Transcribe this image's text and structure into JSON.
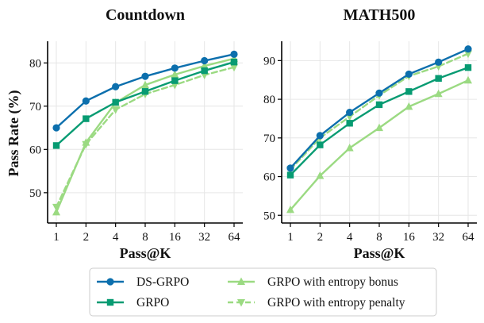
{
  "chart_data": [
    {
      "type": "line",
      "title": "Countdown",
      "xlabel": "Pass@K",
      "ylabel": "Pass Rate (%)",
      "categories": [
        "1",
        "2",
        "4",
        "8",
        "16",
        "32",
        "64"
      ],
      "ylim": [
        43,
        85
      ],
      "yticks": [
        50,
        60,
        70,
        80
      ],
      "grid": true,
      "series": [
        {
          "name": "DS-GRPO",
          "values": [
            65.0,
            71.2,
            74.5,
            76.9,
            78.8,
            80.5,
            82.0
          ]
        },
        {
          "name": "GRPO",
          "values": [
            60.9,
            67.1,
            70.9,
            73.4,
            75.9,
            78.2,
            80.2
          ]
        },
        {
          "name": "GRPO with entropy bonus",
          "values": [
            45.5,
            61.6,
            70.8,
            74.9,
            77.3,
            79.3,
            81.0
          ]
        },
        {
          "name": "GRPO with entropy penalty",
          "values": [
            46.7,
            61.2,
            69.2,
            72.8,
            74.9,
            77.2,
            79.0
          ]
        }
      ]
    },
    {
      "type": "line",
      "title": "MATH500",
      "xlabel": "Pass@K",
      "ylabel": "",
      "categories": [
        "1",
        "2",
        "4",
        "8",
        "16",
        "32",
        "64"
      ],
      "ylim": [
        48,
        95
      ],
      "yticks": [
        50,
        60,
        70,
        80,
        90
      ],
      "grid": true,
      "series": [
        {
          "name": "DS-GRPO",
          "values": [
            62.2,
            70.6,
            76.6,
            81.6,
            86.5,
            89.6,
            93.0
          ]
        },
        {
          "name": "GRPO",
          "values": [
            60.4,
            68.2,
            73.8,
            78.6,
            82.0,
            85.4,
            88.2
          ]
        },
        {
          "name": "GRPO with entropy bonus",
          "values": [
            51.4,
            60.2,
            67.4,
            72.6,
            78.1,
            81.4,
            84.9
          ]
        },
        {
          "name": "GRPO with entropy penalty",
          "values": [
            61.8,
            70.0,
            75.5,
            81.0,
            86.0,
            88.5,
            91.8
          ]
        }
      ]
    }
  ],
  "legend": {
    "placement": "bottom-center",
    "entries": [
      {
        "name": "DS-GRPO",
        "color": "#0c6fad",
        "marker": "circle",
        "dash": "solid"
      },
      {
        "name": "GRPO",
        "color": "#079b72",
        "marker": "square",
        "dash": "solid"
      },
      {
        "name": "GRPO with entropy bonus",
        "color": "#9bda82",
        "marker": "triangle-up",
        "dash": "solid"
      },
      {
        "name": "GRPO with entropy penalty",
        "color": "#9bda82",
        "marker": "triangle-down",
        "dash": "dashed"
      }
    ]
  }
}
